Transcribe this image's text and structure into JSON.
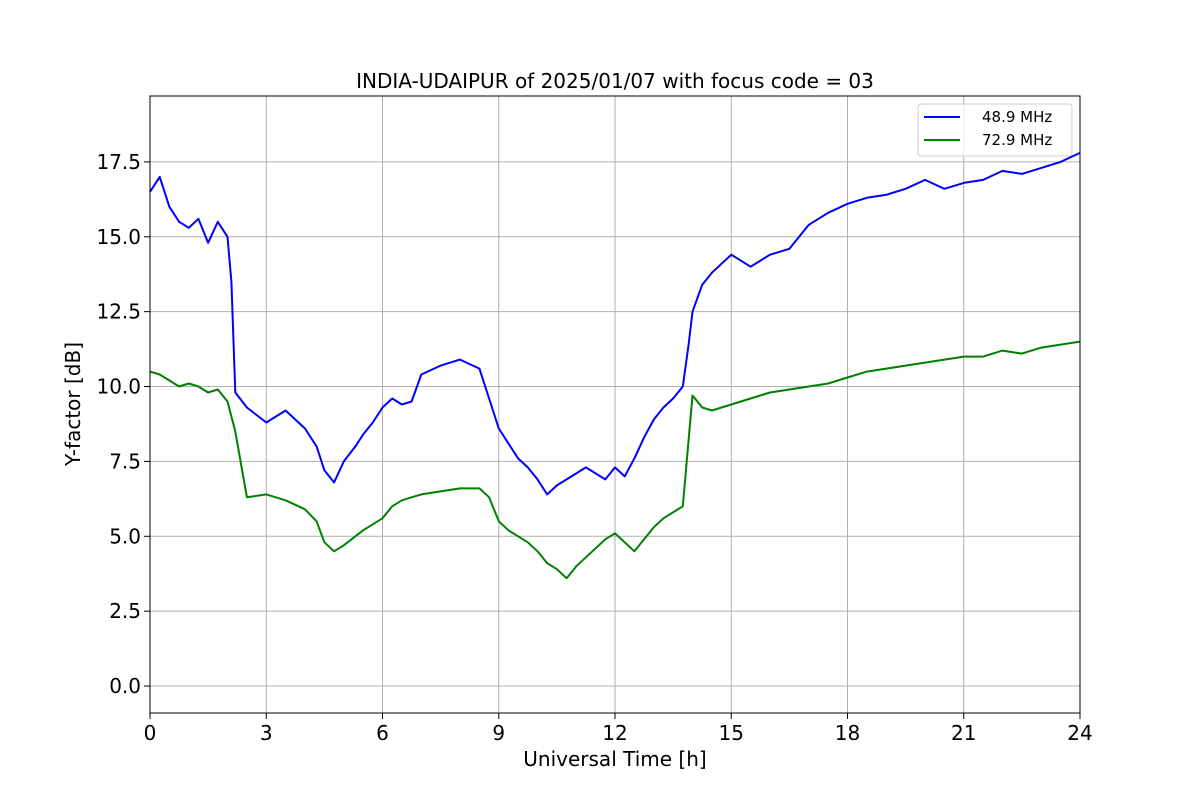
{
  "chart_data": {
    "type": "line",
    "title": "INDIA-UDAIPUR of 2025/01/07 with focus code = 03",
    "xlabel": "Universal Time [h]",
    "ylabel": "Y-factor [dB]",
    "xlim": [
      0,
      24
    ],
    "ylim": [
      -0.9,
      19.7
    ],
    "xticks": [
      0,
      3,
      6,
      9,
      12,
      15,
      18,
      21,
      24
    ],
    "xtick_labels": [
      "0",
      "3",
      "6",
      "9",
      "12",
      "15",
      "18",
      "21",
      "24"
    ],
    "yticks": [
      0.0,
      2.5,
      5.0,
      7.5,
      10.0,
      12.5,
      15.0,
      17.5
    ],
    "ytick_labels": [
      "0.0",
      "2.5",
      "5.0",
      "7.5",
      "10.0",
      "12.5",
      "15.0",
      "17.5"
    ],
    "grid": true,
    "legend_position": "top-right",
    "series": [
      {
        "name": "48.9 MHz",
        "color": "#0000ff",
        "x": [
          0,
          0.25,
          0.5,
          0.75,
          1.0,
          1.25,
          1.5,
          1.75,
          2.0,
          2.1,
          2.2,
          2.5,
          3.0,
          3.5,
          4.0,
          4.3,
          4.5,
          4.75,
          5.0,
          5.3,
          5.5,
          5.75,
          6.0,
          6.25,
          6.5,
          6.75,
          7.0,
          7.5,
          8.0,
          8.5,
          8.75,
          9.0,
          9.25,
          9.5,
          9.75,
          10.0,
          10.25,
          10.5,
          10.75,
          11.0,
          11.25,
          11.5,
          11.75,
          12.0,
          12.25,
          12.5,
          12.75,
          13.0,
          13.25,
          13.5,
          13.75,
          13.9,
          14.0,
          14.25,
          14.5,
          15.0,
          15.5,
          16.0,
          16.5,
          17.0,
          17.5,
          18.0,
          18.5,
          19.0,
          19.5,
          20.0,
          20.5,
          21.0,
          21.5,
          22.0,
          22.5,
          23.0,
          23.5,
          24.0
        ],
        "values": [
          16.5,
          17.0,
          16.0,
          15.5,
          15.3,
          15.6,
          14.8,
          15.5,
          15.0,
          13.5,
          9.8,
          9.3,
          8.8,
          9.2,
          8.6,
          8.0,
          7.2,
          6.8,
          7.5,
          8.0,
          8.4,
          8.8,
          9.3,
          9.6,
          9.4,
          9.5,
          10.4,
          10.7,
          10.9,
          10.6,
          9.6,
          8.6,
          8.1,
          7.6,
          7.3,
          6.9,
          6.4,
          6.7,
          6.9,
          7.1,
          7.3,
          7.1,
          6.9,
          7.3,
          7.0,
          7.6,
          8.3,
          8.9,
          9.3,
          9.6,
          10.0,
          11.4,
          12.5,
          13.4,
          13.8,
          14.4,
          14.0,
          14.4,
          14.6,
          15.4,
          15.8,
          16.1,
          16.3,
          16.4,
          16.6,
          16.9,
          16.6,
          16.8,
          16.9,
          17.2,
          17.1,
          17.3,
          17.5,
          17.8
        ]
      },
      {
        "name": "72.9 MHz",
        "color": "#008000",
        "x": [
          0,
          0.25,
          0.5,
          0.75,
          1.0,
          1.25,
          1.5,
          1.75,
          2.0,
          2.2,
          2.5,
          3.0,
          3.5,
          4.0,
          4.3,
          4.5,
          4.75,
          5.0,
          5.3,
          5.5,
          5.75,
          6.0,
          6.25,
          6.5,
          6.75,
          7.0,
          7.5,
          8.0,
          8.5,
          8.75,
          9.0,
          9.25,
          9.5,
          9.75,
          10.0,
          10.25,
          10.5,
          10.75,
          11.0,
          11.25,
          11.5,
          11.75,
          12.0,
          12.25,
          12.5,
          12.75,
          13.0,
          13.25,
          13.5,
          13.75,
          14.0,
          14.25,
          14.5,
          15.0,
          15.5,
          16.0,
          16.5,
          17.0,
          17.5,
          18.0,
          18.5,
          19.0,
          19.5,
          20.0,
          20.5,
          21.0,
          21.5,
          22.0,
          22.5,
          23.0,
          23.5,
          24.0
        ],
        "values": [
          10.5,
          10.4,
          10.2,
          10.0,
          10.1,
          10.0,
          9.8,
          9.9,
          9.5,
          8.5,
          6.3,
          6.4,
          6.2,
          5.9,
          5.5,
          4.8,
          4.5,
          4.7,
          5.0,
          5.2,
          5.4,
          5.6,
          6.0,
          6.2,
          6.3,
          6.4,
          6.5,
          6.6,
          6.6,
          6.3,
          5.5,
          5.2,
          5.0,
          4.8,
          4.5,
          4.1,
          3.9,
          3.6,
          4.0,
          4.3,
          4.6,
          4.9,
          5.1,
          4.8,
          4.5,
          4.9,
          5.3,
          5.6,
          5.8,
          6.0,
          9.7,
          9.3,
          9.2,
          9.4,
          9.6,
          9.8,
          9.9,
          10.0,
          10.1,
          10.3,
          10.5,
          10.6,
          10.7,
          10.8,
          10.9,
          11.0,
          11.0,
          11.2,
          11.1,
          11.3,
          11.4,
          11.5
        ]
      }
    ]
  }
}
